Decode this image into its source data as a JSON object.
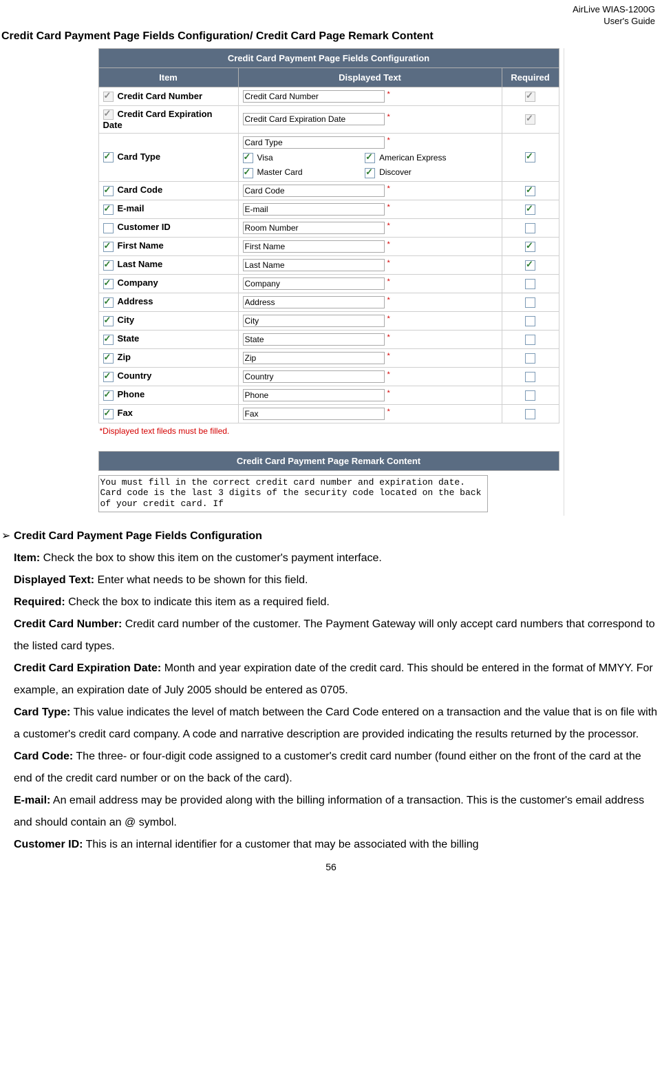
{
  "header": {
    "product": "AirLive WIAS-1200G",
    "subtitle": "User's Guide"
  },
  "page_title": "Credit Card Payment Page Fields Configuration/ Credit Card Page Remark Content",
  "fields_table": {
    "title": "Credit Card Payment Page Fields Configuration",
    "columns": {
      "item": "Item",
      "displayed": "Displayed Text",
      "required": "Required"
    },
    "rows": [
      {
        "item_checked": true,
        "item_disabled": true,
        "item_label": "Credit Card Number",
        "displayed": "Credit Card Number",
        "req_star": true,
        "required_checked": true,
        "required_disabled": true
      },
      {
        "item_checked": true,
        "item_disabled": true,
        "item_label": "Credit Card Expiration Date",
        "displayed": "Credit Card Expiration Date",
        "req_star": true,
        "required_checked": true,
        "required_disabled": true
      },
      {
        "item_checked": true,
        "item_disabled": false,
        "item_label": "Card Type",
        "displayed": "Card Type",
        "req_star": true,
        "required_checked": true,
        "required_disabled": false,
        "subchecks": [
          {
            "checked": true,
            "label": "Visa"
          },
          {
            "checked": true,
            "label": "American Express"
          },
          {
            "checked": true,
            "label": "Master Card"
          },
          {
            "checked": true,
            "label": "Discover"
          }
        ]
      },
      {
        "item_checked": true,
        "item_disabled": false,
        "item_label": "Card Code",
        "displayed": "Card Code",
        "req_star": true,
        "required_checked": true,
        "required_disabled": false
      },
      {
        "item_checked": true,
        "item_disabled": false,
        "item_label": "E-mail",
        "displayed": "E-mail",
        "req_star": true,
        "required_checked": true,
        "required_disabled": false
      },
      {
        "item_checked": false,
        "item_disabled": false,
        "item_label": "Customer ID",
        "displayed": "Room Number",
        "req_star": true,
        "required_checked": false,
        "required_disabled": false
      },
      {
        "item_checked": true,
        "item_disabled": false,
        "item_label": "First Name",
        "displayed": "First Name",
        "req_star": true,
        "required_checked": true,
        "required_disabled": false
      },
      {
        "item_checked": true,
        "item_disabled": false,
        "item_label": "Last Name",
        "displayed": "Last Name",
        "req_star": true,
        "required_checked": true,
        "required_disabled": false
      },
      {
        "item_checked": true,
        "item_disabled": false,
        "item_label": "Company",
        "displayed": "Company",
        "req_star": true,
        "required_checked": false,
        "required_disabled": false
      },
      {
        "item_checked": true,
        "item_disabled": false,
        "item_label": "Address",
        "displayed": "Address",
        "req_star": true,
        "required_checked": false,
        "required_disabled": false
      },
      {
        "item_checked": true,
        "item_disabled": false,
        "item_label": "City",
        "displayed": "City",
        "req_star": true,
        "required_checked": false,
        "required_disabled": false
      },
      {
        "item_checked": true,
        "item_disabled": false,
        "item_label": "State",
        "displayed": "State",
        "req_star": true,
        "required_checked": false,
        "required_disabled": false
      },
      {
        "item_checked": true,
        "item_disabled": false,
        "item_label": "Zip",
        "displayed": "Zip",
        "req_star": true,
        "required_checked": false,
        "required_disabled": false
      },
      {
        "item_checked": true,
        "item_disabled": false,
        "item_label": "Country",
        "displayed": "Country",
        "req_star": true,
        "required_checked": false,
        "required_disabled": false
      },
      {
        "item_checked": true,
        "item_disabled": false,
        "item_label": "Phone",
        "displayed": "Phone",
        "req_star": true,
        "required_checked": false,
        "required_disabled": false
      },
      {
        "item_checked": true,
        "item_disabled": false,
        "item_label": "Fax",
        "displayed": "Fax",
        "req_star": true,
        "required_checked": false,
        "required_disabled": false
      }
    ],
    "footnote_star": "*",
    "footnote_text": "Displayed text fileds must be filled."
  },
  "remark": {
    "title": "Credit Card Payment Page Remark Content",
    "text": "You must fill in the correct credit card number and expiration date. Card code is the last 3 digits of the security code located on the back of your credit card. If"
  },
  "doc": {
    "bullet_heading": "Credit Card Payment Page Fields Configuration",
    "item_label": "Item:",
    "item_text": " Check the box to show this item on the customer's payment interface.",
    "displayed_label": "Displayed Text:",
    "displayed_text": " Enter what needs to be shown for this field.",
    "required_label": "Required:",
    "required_text": " Check the box to indicate this item as a required field.",
    "ccnum_label": "Credit Card Number:",
    "ccnum_text": " Credit card number of the customer. The Payment Gateway will only accept card numbers that correspond to the listed card types.",
    "ccexp_label": "Credit Card Expiration Date:",
    "ccexp_text": " Month and year expiration date of the credit card. This should be entered in the format of MMYY. For example, an expiration date of July 2005 should be entered as 0705.",
    "ctype_label": "Card Type:",
    "ctype_text": " This value indicates the level of match between the Card Code entered on a transaction and the value that is on file with a customer's credit card company. A code and narrative description are provided indicating the results returned by the processor.",
    "ccode_label": "Card Code:",
    "ccode_text": " The three- or four-digit code assigned to a customer's credit card number (found either on the front of the card at the end of the credit card number or on the back of the card).",
    "email_label": "E-mail:",
    "email_text": " An email address may be provided along with the billing information of a transaction. This is the customer's email address and should contain an @ symbol.",
    "custid_label": "Customer ID:",
    "custid_text": " This is an internal identifier for a customer that may be associated with the billing"
  },
  "page_number": "56"
}
